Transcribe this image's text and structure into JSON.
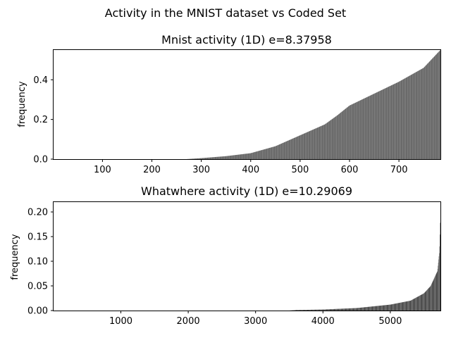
{
  "figure": {
    "suptitle": "Activity in the MNIST dataset vs Coded Set"
  },
  "colors": {
    "bar": "#444444",
    "axis": "#000000",
    "background": "#ffffff"
  },
  "chart_data": [
    {
      "type": "bar",
      "title": "Mnist activity (1D) e=8.37958",
      "xlabel": "",
      "ylabel": "frequency",
      "n_bars": 784,
      "xlim": [
        1,
        784
      ],
      "ylim": [
        0,
        0.55
      ],
      "xticks": [
        100,
        200,
        300,
        400,
        500,
        600,
        700
      ],
      "yticks": [
        0.0,
        0.2,
        0.4
      ],
      "ytick_labels": [
        "0.0",
        "0.2",
        "0.4"
      ],
      "grid": false,
      "profile": [
        [
          1,
          0.0
        ],
        [
          270,
          0.0
        ],
        [
          300,
          0.005
        ],
        [
          350,
          0.015
        ],
        [
          400,
          0.03
        ],
        [
          450,
          0.065
        ],
        [
          500,
          0.12
        ],
        [
          550,
          0.175
        ],
        [
          575,
          0.22
        ],
        [
          600,
          0.27
        ],
        [
          650,
          0.33
        ],
        [
          700,
          0.39
        ],
        [
          750,
          0.46
        ],
        [
          784,
          0.55
        ]
      ]
    },
    {
      "type": "bar",
      "title": "Whatwhere activity (1D) e=10.29069",
      "xlabel": "",
      "ylabel": "frequency",
      "n_bars": 5744,
      "xlim": [
        1,
        5744
      ],
      "ylim": [
        0,
        0.22
      ],
      "xticks": [
        1000,
        2000,
        3000,
        4000,
        5000
      ],
      "yticks": [
        0.0,
        0.05,
        0.1,
        0.15,
        0.2
      ],
      "ytick_labels": [
        "0.00",
        "0.05",
        "0.10",
        "0.15",
        "0.20"
      ],
      "grid": false,
      "profile": [
        [
          1,
          0.0
        ],
        [
          3500,
          0.0
        ],
        [
          3600,
          0.001
        ],
        [
          4000,
          0.002
        ],
        [
          4500,
          0.005
        ],
        [
          5000,
          0.012
        ],
        [
          5300,
          0.02
        ],
        [
          5500,
          0.035
        ],
        [
          5600,
          0.05
        ],
        [
          5700,
          0.08
        ],
        [
          5730,
          0.12
        ],
        [
          5744,
          0.19
        ]
      ]
    }
  ]
}
